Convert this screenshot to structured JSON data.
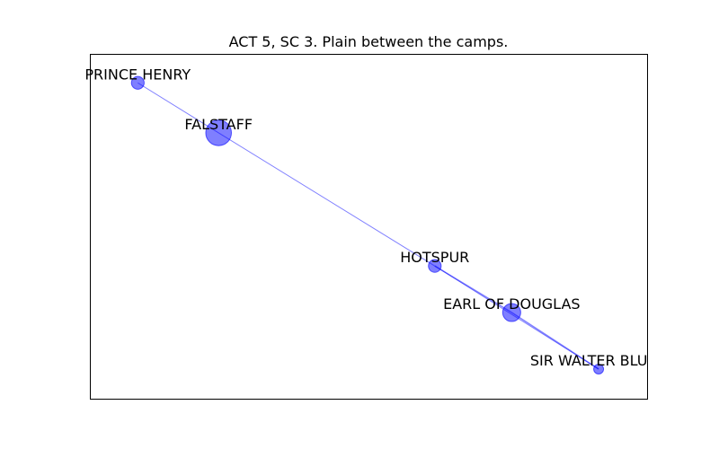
{
  "title": "ACT 5, SC 3. Plain between the camps.",
  "colors": {
    "node_fill": "#0000ff",
    "edge": "#0000ff",
    "frame": "#000000",
    "background": "#ffffff"
  },
  "chart_data": {
    "type": "network",
    "title": "ACT 5, SC 3. Plain between the camps.",
    "axes_visible": false,
    "xlim": [
      0,
      1
    ],
    "ylim": [
      0,
      1
    ],
    "nodes": [
      {
        "id": "PRINCE HENRY",
        "label": "PRINCE HENRY",
        "x": 0.086,
        "y": 0.916,
        "weight": 1
      },
      {
        "id": "FALSTAFF",
        "label": "FALSTAFF",
        "x": 0.231,
        "y": 0.771,
        "weight": 5
      },
      {
        "id": "HOTSPUR",
        "label": "HOTSPUR",
        "x": 0.619,
        "y": 0.385,
        "weight": 1
      },
      {
        "id": "EARL OF DOUGLAS",
        "label": "EARL OF DOUGLAS",
        "x": 0.757,
        "y": 0.25,
        "weight": 2
      },
      {
        "id": "SIR WALTER BLUNT",
        "label": "SIR WALTER BLUNT",
        "x": 0.913,
        "y": 0.086,
        "weight": 0.6
      }
    ],
    "edges": [
      {
        "source": "PRINCE HENRY",
        "target": "FALSTAFF",
        "weight": 1
      },
      {
        "source": "FALSTAFF",
        "target": "HOTSPUR",
        "weight": 1
      },
      {
        "source": "HOTSPUR",
        "target": "EARL OF DOUGLAS",
        "weight": 1.5
      },
      {
        "source": "HOTSPUR",
        "target": "SIR WALTER BLUNT",
        "weight": 1
      },
      {
        "source": "EARL OF DOUGLAS",
        "target": "SIR WALTER BLUNT",
        "weight": 1.5
      }
    ]
  }
}
